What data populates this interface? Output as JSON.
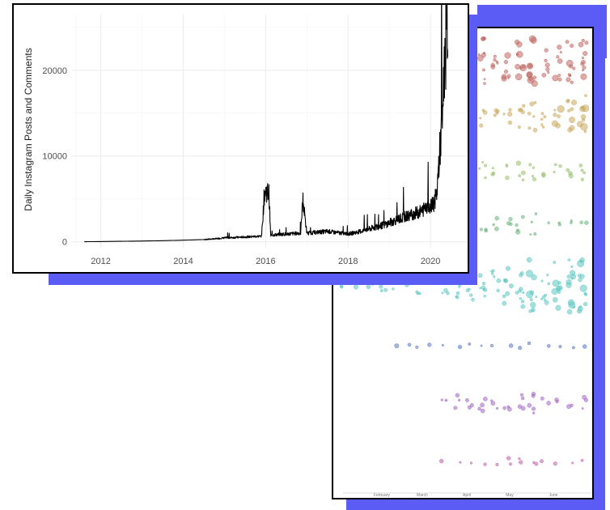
{
  "colors": {
    "accent_shadow": "#5b5bf5",
    "line": "#000000",
    "grid": "#ebebeb",
    "tick_text": "#4d4d4d",
    "clusters": [
      "#c0645f",
      "#c8a75c",
      "#95c06a",
      "#6ab27a",
      "#5cc6c2",
      "#5b79c2",
      "#a064c2",
      "#c25ca6"
    ]
  },
  "chart_data": [
    {
      "type": "line",
      "title": "",
      "xlabel": "",
      "ylabel": "Daily Instagram Posts and Comments",
      "xlim": [
        2011.3,
        2020.9
      ],
      "ylim": [
        -700,
        26500
      ],
      "x_ticks": [
        "2012",
        "2014",
        "2016",
        "2018",
        "2020"
      ],
      "x_tick_values": [
        2012,
        2014,
        2016,
        2018,
        2020
      ],
      "y_ticks": [
        "0",
        "10000",
        "20000"
      ],
      "y_tick_values": [
        0,
        10000,
        20000
      ],
      "grid": true,
      "series": [
        {
          "x": [
            2011.6,
            2012.0,
            2012.5,
            2013.0,
            2013.5,
            2014.0,
            2014.5,
            2014.8,
            2015.0,
            2015.5,
            2015.9,
            2015.97,
            2016.02,
            2016.08,
            2016.12,
            2016.2,
            2016.5,
            2016.85,
            2016.9,
            2017.0,
            2017.5,
            2018.0,
            2018.3,
            2018.6,
            2018.9,
            2019.2,
            2019.5,
            2019.8,
            2019.95,
            2020.0,
            2020.08,
            2020.15,
            2020.2,
            2020.25,
            2020.3,
            2020.33,
            2020.36,
            2020.39,
            2020.42
          ],
          "y": [
            0,
            20,
            50,
            80,
            120,
            180,
            250,
            350,
            450,
            550,
            650,
            5700,
            5900,
            5600,
            700,
            800,
            900,
            1000,
            5000,
            1000,
            1200,
            900,
            1200,
            1600,
            2000,
            2600,
            3100,
            3600,
            4500,
            4000,
            4500,
            5500,
            9000,
            12000,
            16000,
            20000,
            22000,
            24000,
            25800
          ]
        }
      ]
    },
    {
      "type": "scatter",
      "title": "",
      "x_ticks": [
        "February",
        "March",
        "April",
        "May",
        "June"
      ],
      "series": [
        {
          "name": "",
          "values": [
            1.0,
            1.0,
            1.0,
            1.0,
            1.0
          ]
        },
        {
          "name": "",
          "values": [
            0.2,
            0.3,
            0.5,
            0.7,
            1.0
          ]
        },
        {
          "name": "",
          "values": [
            0.3,
            0.5,
            0.6,
            0.6,
            0.5
          ]
        },
        {
          "name": "",
          "values": [
            0.0,
            0.2,
            0.4,
            0.6,
            0.3
          ]
        },
        {
          "name": "",
          "values": [
            0.2,
            0.3,
            0.5,
            0.8,
            1.0
          ]
        },
        {
          "name": "",
          "values": [
            0.0,
            0.1,
            0.3,
            0.4,
            0.3
          ]
        },
        {
          "name": "",
          "values": [
            0.0,
            0.0,
            0.6,
            0.7,
            0.4
          ]
        },
        {
          "name": "",
          "values": [
            0.0,
            0.0,
            0.2,
            0.5,
            0.3
          ]
        }
      ]
    }
  ]
}
